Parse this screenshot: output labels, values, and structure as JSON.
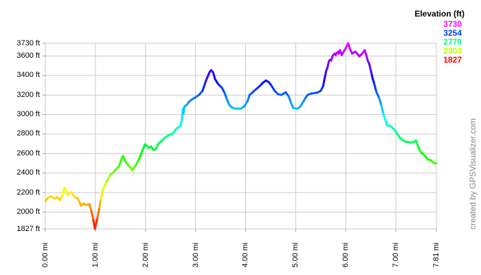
{
  "credit": "created by GPSVisualizer.com",
  "colors": {
    "background": "#ffffff",
    "grid": "#c9c9c9",
    "plot_border": "#c9c9c9",
    "tick": "#9a9a9a",
    "axis_text": "#000000",
    "credit_text": "#888888"
  },
  "chart_data": {
    "type": "line",
    "title": "",
    "xlabel": "",
    "ylabel": "",
    "grid": true,
    "xlim": [
      0,
      7.81
    ],
    "ylim": [
      1827,
      3730
    ],
    "x_ticks": [
      {
        "value": 0.0,
        "label": "0.00 mi"
      },
      {
        "value": 1.0,
        "label": "1.00 mi"
      },
      {
        "value": 2.0,
        "label": "2.00 mi"
      },
      {
        "value": 3.0,
        "label": "3.00 mi"
      },
      {
        "value": 4.0,
        "label": "4.00 mi"
      },
      {
        "value": 5.0,
        "label": "5.00 mi"
      },
      {
        "value": 6.0,
        "label": "6.00 mi"
      },
      {
        "value": 7.0,
        "label": "7.00 mi"
      },
      {
        "value": 7.81,
        "label": "7.81 mi"
      }
    ],
    "y_ticks": [
      {
        "value": 3730,
        "label": "3730 ft"
      },
      {
        "value": 3600,
        "label": "3600 ft"
      },
      {
        "value": 3400,
        "label": "3400 ft"
      },
      {
        "value": 3200,
        "label": "3200 ft"
      },
      {
        "value": 3000,
        "label": "3000 ft"
      },
      {
        "value": 2800,
        "label": "2800 ft"
      },
      {
        "value": 2600,
        "label": "2600 ft"
      },
      {
        "value": 2400,
        "label": "2400 ft"
      },
      {
        "value": 2200,
        "label": "2200 ft"
      },
      {
        "value": 2000,
        "label": "2000 ft"
      },
      {
        "value": 1827,
        "label": "1827 ft"
      }
    ],
    "legend": {
      "position": "top-right",
      "title": "Elevation (ft)",
      "entries": [
        {
          "label": "3730",
          "color": "#ff00ff"
        },
        {
          "label": "3254",
          "color": "#0040ff"
        },
        {
          "label": "2779",
          "color": "#00ff80"
        },
        {
          "label": "2303",
          "color": "#bfff00"
        },
        {
          "label": "1827",
          "color": "#ff0000"
        }
      ]
    },
    "color_mapping": {
      "description": "line colored by elevation, hue 0 (red) at min to hue 300 (magenta) at max",
      "min_ft": 1827,
      "max_ft": 3730,
      "hue_min": 0,
      "hue_max": 300
    },
    "series": [
      {
        "name": "elevation_profile",
        "units": {
          "x": "mi",
          "y": "ft"
        },
        "points": [
          [
            0.0,
            2110
          ],
          [
            0.05,
            2145
          ],
          [
            0.1,
            2160
          ],
          [
            0.15,
            2150
          ],
          [
            0.19,
            2138
          ],
          [
            0.23,
            2152
          ],
          [
            0.29,
            2123
          ],
          [
            0.33,
            2160
          ],
          [
            0.38,
            2250
          ],
          [
            0.43,
            2200
          ],
          [
            0.45,
            2172
          ],
          [
            0.51,
            2207
          ],
          [
            0.55,
            2180
          ],
          [
            0.59,
            2151
          ],
          [
            0.64,
            2144
          ],
          [
            0.69,
            2094
          ],
          [
            0.71,
            2066
          ],
          [
            0.77,
            2087
          ],
          [
            0.81,
            2073
          ],
          [
            0.88,
            2080
          ],
          [
            0.92,
            2010
          ],
          [
            0.96,
            1918
          ],
          [
            0.99,
            1827
          ],
          [
            1.04,
            1940
          ],
          [
            1.08,
            2045
          ],
          [
            1.11,
            2130
          ],
          [
            1.15,
            2230
          ],
          [
            1.22,
            2310
          ],
          [
            1.3,
            2380
          ],
          [
            1.36,
            2410
          ],
          [
            1.4,
            2433
          ],
          [
            1.47,
            2468
          ],
          [
            1.52,
            2539
          ],
          [
            1.55,
            2574
          ],
          [
            1.6,
            2520
          ],
          [
            1.66,
            2480
          ],
          [
            1.7,
            2455
          ],
          [
            1.74,
            2433
          ],
          [
            1.81,
            2482
          ],
          [
            1.88,
            2553
          ],
          [
            1.95,
            2644
          ],
          [
            1.99,
            2694
          ],
          [
            2.07,
            2659
          ],
          [
            2.11,
            2673
          ],
          [
            2.16,
            2637
          ],
          [
            2.21,
            2644
          ],
          [
            2.25,
            2694
          ],
          [
            2.32,
            2729
          ],
          [
            2.39,
            2764
          ],
          [
            2.46,
            2786
          ],
          [
            2.53,
            2800
          ],
          [
            2.57,
            2821
          ],
          [
            2.62,
            2856
          ],
          [
            2.66,
            2870
          ],
          [
            2.7,
            2884
          ],
          [
            2.73,
            2955
          ],
          [
            2.75,
            3060
          ],
          [
            2.76,
            3011
          ],
          [
            2.78,
            3081
          ],
          [
            2.83,
            3103
          ],
          [
            2.87,
            3131
          ],
          [
            2.94,
            3159
          ],
          [
            2.99,
            3173
          ],
          [
            3.07,
            3201
          ],
          [
            3.14,
            3243
          ],
          [
            3.21,
            3349
          ],
          [
            3.28,
            3434
          ],
          [
            3.31,
            3455
          ],
          [
            3.35,
            3434
          ],
          [
            3.39,
            3363
          ],
          [
            3.45,
            3314
          ],
          [
            3.49,
            3293
          ],
          [
            3.53,
            3272
          ],
          [
            3.58,
            3222
          ],
          [
            3.62,
            3166
          ],
          [
            3.67,
            3103
          ],
          [
            3.72,
            3074
          ],
          [
            3.79,
            3060
          ],
          [
            3.9,
            3060
          ],
          [
            3.97,
            3081
          ],
          [
            4.04,
            3138
          ],
          [
            4.08,
            3201
          ],
          [
            4.13,
            3222
          ],
          [
            4.17,
            3243
          ],
          [
            4.24,
            3272
          ],
          [
            4.31,
            3307
          ],
          [
            4.35,
            3328
          ],
          [
            4.41,
            3349
          ],
          [
            4.47,
            3328
          ],
          [
            4.52,
            3293
          ],
          [
            4.58,
            3243
          ],
          [
            4.65,
            3208
          ],
          [
            4.72,
            3201
          ],
          [
            4.8,
            3229
          ],
          [
            4.86,
            3187
          ],
          [
            4.9,
            3131
          ],
          [
            4.95,
            3067
          ],
          [
            5.04,
            3060
          ],
          [
            5.09,
            3081
          ],
          [
            5.16,
            3138
          ],
          [
            5.2,
            3173
          ],
          [
            5.24,
            3201
          ],
          [
            5.31,
            3215
          ],
          [
            5.41,
            3222
          ],
          [
            5.45,
            3229
          ],
          [
            5.5,
            3243
          ],
          [
            5.55,
            3293
          ],
          [
            5.57,
            3349
          ],
          [
            5.59,
            3398
          ],
          [
            5.61,
            3448
          ],
          [
            5.64,
            3490
          ],
          [
            5.66,
            3539
          ],
          [
            5.68,
            3560
          ],
          [
            5.71,
            3553
          ],
          [
            5.73,
            3589
          ],
          [
            5.75,
            3610
          ],
          [
            5.78,
            3624
          ],
          [
            5.8,
            3610
          ],
          [
            5.82,
            3631
          ],
          [
            5.85,
            3645
          ],
          [
            5.86,
            3624
          ],
          [
            5.89,
            3659
          ],
          [
            5.92,
            3610
          ],
          [
            5.96,
            3645
          ],
          [
            6.0,
            3680
          ],
          [
            6.05,
            3730
          ],
          [
            6.09,
            3666
          ],
          [
            6.13,
            3624
          ],
          [
            6.19,
            3645
          ],
          [
            6.23,
            3624
          ],
          [
            6.27,
            3596
          ],
          [
            6.33,
            3624
          ],
          [
            6.38,
            3659
          ],
          [
            6.41,
            3610
          ],
          [
            6.44,
            3553
          ],
          [
            6.47,
            3518
          ],
          [
            6.51,
            3434
          ],
          [
            6.53,
            3384
          ],
          [
            6.57,
            3314
          ],
          [
            6.61,
            3236
          ],
          [
            6.67,
            3166
          ],
          [
            6.71,
            3095
          ],
          [
            6.75,
            3011
          ],
          [
            6.78,
            2961
          ],
          [
            6.81,
            2919
          ],
          [
            6.82,
            2891
          ],
          [
            6.89,
            2884
          ],
          [
            6.95,
            2856
          ],
          [
            6.99,
            2835
          ],
          [
            7.03,
            2800
          ],
          [
            7.08,
            2764
          ],
          [
            7.12,
            2743
          ],
          [
            7.19,
            2722
          ],
          [
            7.29,
            2715
          ],
          [
            7.36,
            2715
          ],
          [
            7.4,
            2736
          ],
          [
            7.43,
            2694
          ],
          [
            7.47,
            2644
          ],
          [
            7.51,
            2609
          ],
          [
            7.56,
            2588
          ],
          [
            7.6,
            2567
          ],
          [
            7.64,
            2539
          ],
          [
            7.7,
            2532
          ],
          [
            7.74,
            2510
          ],
          [
            7.81,
            2496
          ]
        ]
      }
    ]
  }
}
